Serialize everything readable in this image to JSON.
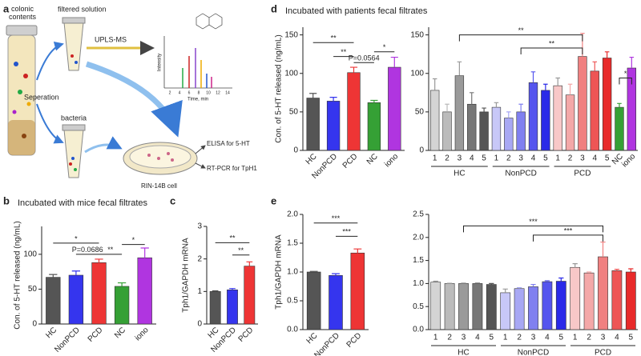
{
  "panels": [
    {
      "label": "a"
    },
    {
      "label": "b",
      "title": "Incubated with mice fecal filtrates"
    },
    {
      "label": "c"
    },
    {
      "label": "d",
      "title": "Incubated with patients fecal filtrates"
    },
    {
      "label": "e"
    }
  ],
  "diagram": {
    "contents": "colonic contents",
    "filtered": "filtered solution",
    "method": "UPLS-MS",
    "separation": "Seperation",
    "bacteria": "bacteria",
    "elisa": "ELISA for 5-HT",
    "rtpcr": "RT-PCR for TpH1",
    "cell": "RIN-14B cell",
    "intensity": "Intensity",
    "time": "Time, min",
    "time_ticks": [
      "2",
      "4",
      "6",
      "8",
      "10",
      "12",
      "14"
    ]
  },
  "chart_data": [
    {
      "type": "bar",
      "ylabel": "Con. of 5-HT released (ng/mL)",
      "categories": [
        "HC",
        "NonPCD",
        "PCD",
        "NC",
        "iono"
      ],
      "values": [
        67,
        70,
        88,
        54,
        95
      ],
      "errors": [
        4,
        6,
        5,
        5,
        14
      ],
      "colors": [
        "#555555",
        "#3535ee",
        "#ee3535",
        "#35a035",
        "#b035e0"
      ],
      "ylim": [
        0,
        140
      ],
      "yticks": [
        0,
        50,
        100
      ],
      "annotations": [
        "*",
        "P=0.0686",
        "**",
        "*"
      ]
    },
    {
      "type": "bar",
      "ylabel": "Tph1/GAPDH mRNA",
      "categories": [
        "HC",
        "NonPCD",
        "PCD"
      ],
      "values": [
        1.0,
        1.05,
        1.78
      ],
      "errors": [
        0.02,
        0.04,
        0.13
      ],
      "colors": [
        "#555555",
        "#3535ee",
        "#ee3535"
      ],
      "ylim": [
        0,
        3
      ],
      "yticks": [
        0,
        1,
        2,
        3
      ],
      "annotations": [
        "**",
        "**"
      ]
    },
    {
      "type": "bar",
      "ylabel": "Con. of 5-HT released (ng/mL)",
      "categories": [
        "HC",
        "NonPCD",
        "PCD",
        "NC",
        "iono"
      ],
      "values": [
        68,
        64,
        101,
        62,
        108
      ],
      "errors": [
        6,
        5,
        7,
        3,
        13
      ],
      "colors": [
        "#555555",
        "#3535ee",
        "#ee3535",
        "#35a035",
        "#b035e0"
      ],
      "ylim": [
        0,
        160
      ],
      "yticks": [
        0,
        50,
        100,
        150
      ],
      "annotations": [
        "**",
        "**",
        "P=0.0564",
        "*"
      ]
    },
    {
      "type": "bar",
      "categories": [
        "1",
        "2",
        "3",
        "4",
        "5",
        "1",
        "2",
        "3",
        "4",
        "5",
        "1",
        "2",
        "3",
        "4",
        "5",
        "NC",
        "iono"
      ],
      "groups": [
        "HC",
        "NonPCD",
        "PCD"
      ],
      "values": [
        78,
        50,
        97,
        60,
        50,
        56,
        42,
        50,
        88,
        78,
        84,
        72,
        122,
        103,
        120,
        56,
        107
      ],
      "errors": [
        15,
        10,
        18,
        15,
        5,
        6,
        8,
        10,
        14,
        8,
        10,
        14,
        30,
        12,
        8,
        5,
        14
      ],
      "colors": [
        "#d4d4d4",
        "#bbbbbb",
        "#9a9a9a",
        "#777777",
        "#555555",
        "#c8c8f8",
        "#a8a8f4",
        "#8080f0",
        "#5555ee",
        "#2a2ae8",
        "#f8c8c8",
        "#f4a8a8",
        "#f08080",
        "#ee5555",
        "#e82a2a",
        "#35a035",
        "#b035e0"
      ],
      "ylim": [
        0,
        160
      ],
      "yticks": [
        0,
        50,
        100,
        150
      ],
      "annotations": [
        "**",
        "**",
        "*"
      ]
    },
    {
      "type": "bar",
      "ylabel": "Tph1/GAPDH mRNA",
      "categories": [
        "HC",
        "NonPCD",
        "PCD"
      ],
      "values": [
        1.0,
        0.94,
        1.33
      ],
      "errors": [
        0.01,
        0.03,
        0.07
      ],
      "colors": [
        "#555555",
        "#3535ee",
        "#ee3535"
      ],
      "ylim": [
        0,
        2.0
      ],
      "yticks": [
        {
          "value": 0,
          "label": "0.0"
        },
        0.5,
        {
          "value": 1,
          "label": "1.0"
        },
        1.5,
        {
          "value": 2,
          "label": "2.0"
        }
      ],
      "annotations": [
        "***",
        "***"
      ]
    },
    {
      "type": "bar",
      "categories": [
        "1",
        "2",
        "3",
        "4",
        "5",
        "1",
        "2",
        "3",
        "4",
        "5",
        "1",
        "2",
        "3",
        "4",
        "5"
      ],
      "groups": [
        "HC",
        "NonPCD",
        "PCD"
      ],
      "values": [
        1.03,
        1.0,
        1.0,
        1.0,
        0.98,
        0.8,
        0.89,
        0.93,
        1.04,
        1.05,
        1.35,
        1.23,
        1.58,
        1.28,
        1.25
      ],
      "errors": [
        0.02,
        0.01,
        0.01,
        0.01,
        0.02,
        0.08,
        0.02,
        0.05,
        0.02,
        0.07,
        0.08,
        0.02,
        0.32,
        0.03,
        0.07
      ],
      "colors": [
        "#d4d4d4",
        "#bbbbbb",
        "#9a9a9a",
        "#777777",
        "#555555",
        "#c8c8f8",
        "#a8a8f4",
        "#8080f0",
        "#5555ee",
        "#2a2ae8",
        "#f8c8c8",
        "#f4a8a8",
        "#f08080",
        "#ee5555",
        "#e82a2a"
      ],
      "ylim": [
        0,
        2.5
      ],
      "yticks": [
        {
          "value": 0,
          "label": "0.0"
        },
        0.5,
        {
          "value": 1,
          "label": "1.0"
        },
        1.5,
        {
          "value": 2,
          "label": "2.0"
        },
        2.5
      ],
      "annotations": [
        "***",
        "***"
      ]
    }
  ]
}
